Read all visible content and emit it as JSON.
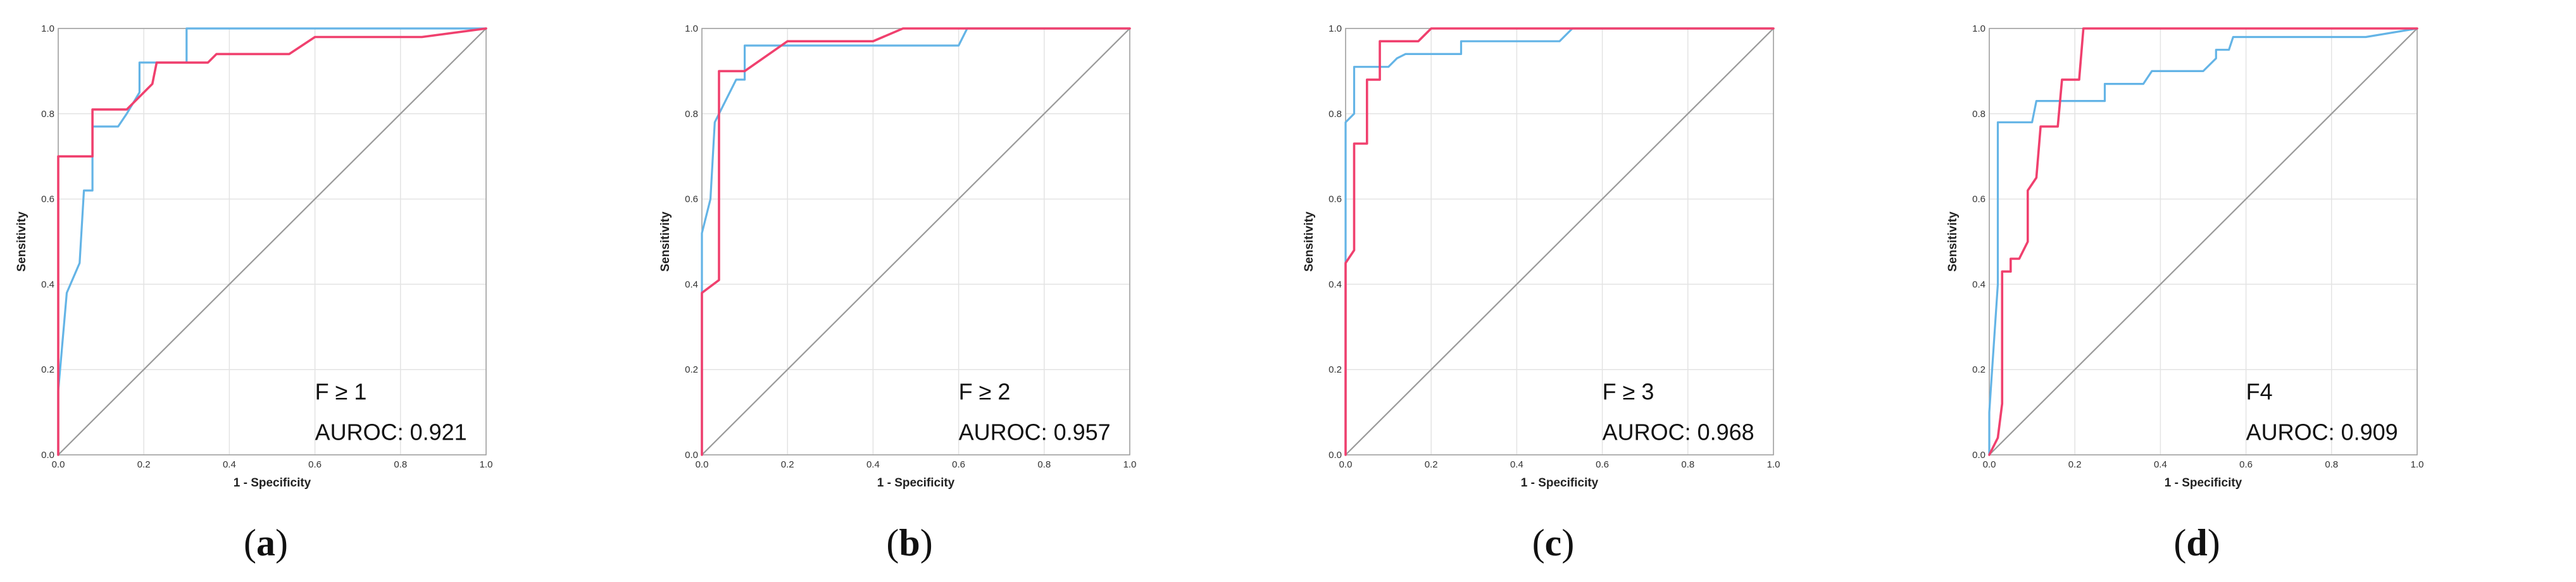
{
  "colors": {
    "series_blue": "#64B4E6",
    "series_red": "#F0406E",
    "reference": "#9A9A9A",
    "grid": "#E3E3E3",
    "frame": "#9C9C9C"
  },
  "chart_data": [
    {
      "type": "line",
      "panel_label": "a",
      "xlabel": "1 - Specificity",
      "ylabel": "Sensitivity",
      "xlim": [
        0,
        1
      ],
      "ylim": [
        0,
        1
      ],
      "xticks": [
        "0.0",
        "0.2",
        "0.4",
        "0.6",
        "0.8",
        "1.0"
      ],
      "yticks": [
        "0.0",
        "0.2",
        "0.4",
        "0.6",
        "0.8",
        "1.0"
      ],
      "grid": true,
      "annotation_title": "F ≥ 1",
      "annotation_auroc": "AUROC: 0.921",
      "reference_line": [
        [
          0,
          0
        ],
        [
          1,
          1
        ]
      ],
      "series": [
        {
          "color": "#64B4E6",
          "points": [
            [
              0,
              0
            ],
            [
              0,
              0.15
            ],
            [
              0.02,
              0.38
            ],
            [
              0.05,
              0.45
            ],
            [
              0.06,
              0.62
            ],
            [
              0.08,
              0.62
            ],
            [
              0.08,
              0.77
            ],
            [
              0.14,
              0.77
            ],
            [
              0.16,
              0.8
            ],
            [
              0.19,
              0.85
            ],
            [
              0.19,
              0.92
            ],
            [
              0.3,
              0.92
            ],
            [
              0.3,
              1
            ],
            [
              1,
              1
            ]
          ]
        },
        {
          "color": "#F0406E",
          "points": [
            [
              0,
              0
            ],
            [
              0,
              0.7
            ],
            [
              0.08,
              0.7
            ],
            [
              0.08,
              0.81
            ],
            [
              0.16,
              0.81
            ],
            [
              0.22,
              0.87
            ],
            [
              0.23,
              0.92
            ],
            [
              0.35,
              0.92
            ],
            [
              0.37,
              0.94
            ],
            [
              0.54,
              0.94
            ],
            [
              0.6,
              0.98
            ],
            [
              0.85,
              0.98
            ],
            [
              1,
              1
            ]
          ]
        }
      ]
    },
    {
      "type": "line",
      "panel_label": "b",
      "xlabel": "1 - Specificity",
      "ylabel": "Sensitivity",
      "xlim": [
        0,
        1
      ],
      "ylim": [
        0,
        1
      ],
      "xticks": [
        "0.0",
        "0.2",
        "0.4",
        "0.6",
        "0.8",
        "1.0"
      ],
      "yticks": [
        "0.0",
        "0.2",
        "0.4",
        "0.6",
        "0.8",
        "1.0"
      ],
      "grid": true,
      "annotation_title": "F ≥ 2",
      "annotation_auroc": "AUROC: 0.957",
      "reference_line": [
        [
          0,
          0
        ],
        [
          1,
          1
        ]
      ],
      "series": [
        {
          "color": "#64B4E6",
          "points": [
            [
              0,
              0
            ],
            [
              0,
              0.52
            ],
            [
              0.02,
              0.6
            ],
            [
              0.03,
              0.78
            ],
            [
              0.08,
              0.88
            ],
            [
              0.1,
              0.88
            ],
            [
              0.1,
              0.96
            ],
            [
              0.6,
              0.96
            ],
            [
              0.62,
              1
            ],
            [
              1,
              1
            ]
          ]
        },
        {
          "color": "#F0406E",
          "points": [
            [
              0,
              0
            ],
            [
              0,
              0.38
            ],
            [
              0.04,
              0.41
            ],
            [
              0.04,
              0.9
            ],
            [
              0.1,
              0.9
            ],
            [
              0.2,
              0.97
            ],
            [
              0.4,
              0.97
            ],
            [
              0.47,
              1
            ],
            [
              1,
              1
            ]
          ]
        }
      ]
    },
    {
      "type": "line",
      "panel_label": "c",
      "xlabel": "1 - Specificity",
      "ylabel": "Sensitivity",
      "xlim": [
        0,
        1
      ],
      "ylim": [
        0,
        1
      ],
      "xticks": [
        "0.0",
        "0.2",
        "0.4",
        "0.6",
        "0.8",
        "1.0"
      ],
      "yticks": [
        "0.0",
        "0.2",
        "0.4",
        "0.6",
        "0.8",
        "1.0"
      ],
      "grid": true,
      "annotation_title": "F ≥ 3",
      "annotation_auroc": "AUROC: 0.968",
      "reference_line": [
        [
          0,
          0
        ],
        [
          1,
          1
        ]
      ],
      "series": [
        {
          "color": "#64B4E6",
          "points": [
            [
              0,
              0
            ],
            [
              0,
              0.78
            ],
            [
              0.02,
              0.8
            ],
            [
              0.02,
              0.91
            ],
            [
              0.1,
              0.91
            ],
            [
              0.12,
              0.93
            ],
            [
              0.14,
              0.94
            ],
            [
              0.27,
              0.94
            ],
            [
              0.27,
              0.97
            ],
            [
              0.5,
              0.97
            ],
            [
              0.53,
              1
            ],
            [
              1,
              1
            ]
          ]
        },
        {
          "color": "#F0406E",
          "points": [
            [
              0,
              0
            ],
            [
              0,
              0.45
            ],
            [
              0.02,
              0.48
            ],
            [
              0.02,
              0.73
            ],
            [
              0.05,
              0.73
            ],
            [
              0.05,
              0.88
            ],
            [
              0.08,
              0.88
            ],
            [
              0.08,
              0.97
            ],
            [
              0.17,
              0.97
            ],
            [
              0.2,
              1
            ],
            [
              1,
              1
            ]
          ]
        }
      ]
    },
    {
      "type": "line",
      "panel_label": "d",
      "xlabel": "1 - Specificity",
      "ylabel": "Sensitivity",
      "xlim": [
        0,
        1
      ],
      "ylim": [
        0,
        1
      ],
      "xticks": [
        "0.0",
        "0.2",
        "0.4",
        "0.6",
        "0.8",
        "1.0"
      ],
      "yticks": [
        "0.0",
        "0.2",
        "0.4",
        "0.6",
        "0.8",
        "1.0"
      ],
      "grid": true,
      "annotation_title": "F4",
      "annotation_auroc": "AUROC: 0.909",
      "reference_line": [
        [
          0,
          0
        ],
        [
          1,
          1
        ]
      ],
      "series": [
        {
          "color": "#64B4E6",
          "points": [
            [
              0,
              0
            ],
            [
              0,
              0.1
            ],
            [
              0.02,
              0.4
            ],
            [
              0.02,
              0.78
            ],
            [
              0.1,
              0.78
            ],
            [
              0.11,
              0.83
            ],
            [
              0.27,
              0.83
            ],
            [
              0.27,
              0.87
            ],
            [
              0.36,
              0.87
            ],
            [
              0.38,
              0.9
            ],
            [
              0.5,
              0.9
            ],
            [
              0.53,
              0.93
            ],
            [
              0.53,
              0.95
            ],
            [
              0.56,
              0.95
            ],
            [
              0.57,
              0.98
            ],
            [
              0.88,
              0.98
            ],
            [
              1,
              1
            ]
          ]
        },
        {
          "color": "#F0406E",
          "points": [
            [
              0,
              0
            ],
            [
              0.02,
              0.04
            ],
            [
              0.03,
              0.12
            ],
            [
              0.03,
              0.43
            ],
            [
              0.05,
              0.43
            ],
            [
              0.05,
              0.46
            ],
            [
              0.07,
              0.46
            ],
            [
              0.09,
              0.5
            ],
            [
              0.09,
              0.62
            ],
            [
              0.11,
              0.65
            ],
            [
              0.12,
              0.77
            ],
            [
              0.16,
              0.77
            ],
            [
              0.17,
              0.88
            ],
            [
              0.21,
              0.88
            ],
            [
              0.22,
              1
            ],
            [
              1,
              1
            ]
          ]
        }
      ]
    }
  ]
}
